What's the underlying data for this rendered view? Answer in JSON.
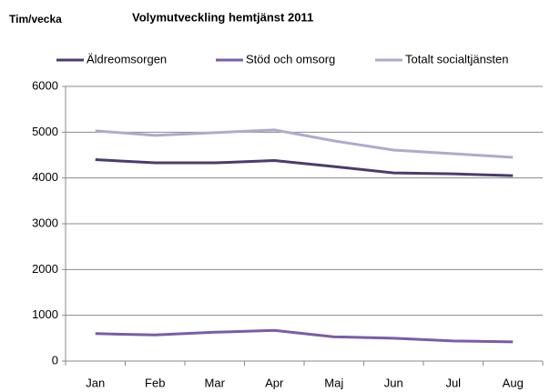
{
  "chart_data": {
    "type": "line",
    "title": "Volymutveckling hemtjänst 2011",
    "y_label": "Tim/vecka",
    "categories": [
      "Jan",
      "Feb",
      "Mar",
      "Apr",
      "Maj",
      "Jun",
      "Jul",
      "Aug"
    ],
    "series": [
      {
        "name": "Äldreomsorgen",
        "color": "#4b3b6e",
        "values": [
          4400,
          4330,
          4330,
          4380,
          4250,
          4110,
          4090,
          4050
        ]
      },
      {
        "name": "Stöd och omsorg",
        "color": "#7a5ca8",
        "values": [
          600,
          570,
          630,
          670,
          530,
          500,
          440,
          420
        ]
      },
      {
        "name": "Totalt socialtjänsten",
        "color": "#b2a8cf",
        "values": [
          5030,
          4930,
          4990,
          5050,
          4810,
          4610,
          4530,
          4450
        ]
      }
    ],
    "ylim": [
      0,
      6000
    ],
    "yticks": [
      0,
      1000,
      2000,
      3000,
      4000,
      5000,
      6000
    ],
    "grid": true,
    "legend": "top"
  }
}
